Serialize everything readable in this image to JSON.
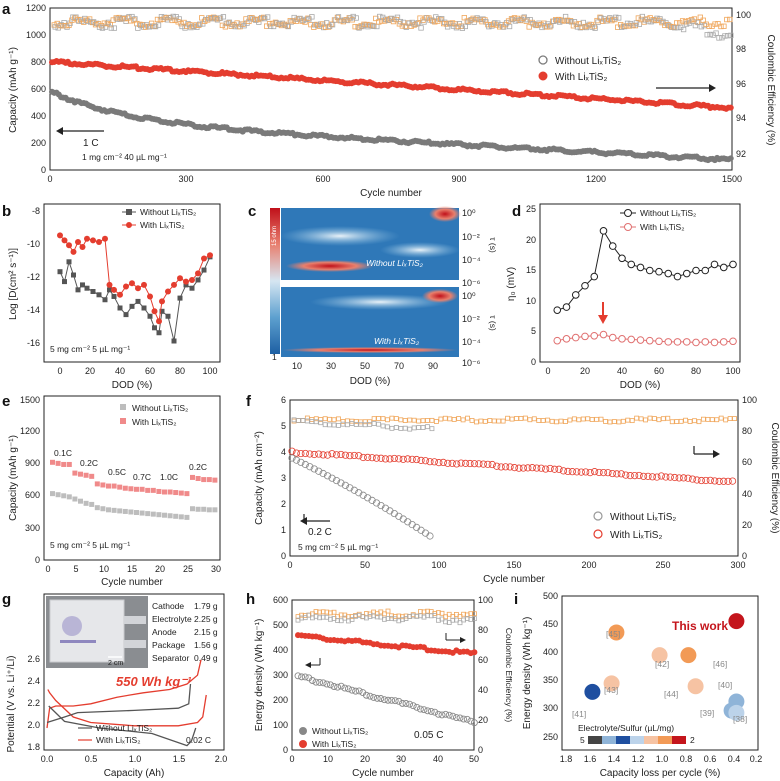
{
  "panel_a": {
    "letter": "a",
    "ylabel": "Capacity (mAh g⁻¹)",
    "y2label": "Coulombic Efficiency (%)",
    "xlabel": "Cycle number",
    "rate": "1 C",
    "loading": "1 mg cm⁻²  40 µL mg⁻¹",
    "x_ticks": [
      "0",
      "300",
      "600",
      "900",
      "1200",
      "1500"
    ],
    "y_ticks": [
      "0",
      "200",
      "400",
      "600",
      "800",
      "1000",
      "1200"
    ],
    "y2_ticks": [
      "92",
      "94",
      "96",
      "98",
      "100"
    ],
    "legend_without": "Without LiₓTiS₂",
    "legend_with": "With LiₓTiS₂"
  },
  "panel_b": {
    "letter": "b",
    "ylabel": "Log [D(cm² s⁻¹)]",
    "xlabel": "DOD (%)",
    "note": "5 mg cm⁻²  5 µL mg⁻¹",
    "x_ticks": [
      "0",
      "20",
      "40",
      "60",
      "80",
      "100"
    ],
    "y_ticks": [
      "-16",
      "-14",
      "-12",
      "-10",
      "-8"
    ],
    "legend_without": "Without LiₓTiS₂",
    "legend_with": "With LiₓTiS₂"
  },
  "panel_c": {
    "letter": "c",
    "xlabel": "DOD (%)",
    "x_ticks": [
      "10",
      "30",
      "50",
      "70",
      "90"
    ],
    "y2label": "τ (s)",
    "y2_ticks_top": [
      "10⁰",
      "10⁻²",
      "10⁻⁴",
      "10⁻⁶"
    ],
    "y2_ticks_bottom": [
      "10⁰",
      "10⁻²",
      "10⁻⁴",
      "10⁻⁶"
    ],
    "colorbar_top": "15 ohm",
    "colorbar_bottom": "1",
    "label_top": "Without LiₓTiS₂",
    "label_bottom": "With LiₓTiS₂"
  },
  "panel_d": {
    "letter": "d",
    "ylabel": "η₀ (mV)",
    "xlabel": "DOD (%)",
    "x_ticks": [
      "0",
      "20",
      "40",
      "60",
      "80",
      "100"
    ],
    "y_ticks": [
      "0",
      "5",
      "10",
      "15",
      "20",
      "25"
    ],
    "legend_without": "Without LiₓTiS₂",
    "legend_with": "With LiₓTiS₂"
  },
  "panel_e": {
    "letter": "e",
    "ylabel": "Capacity (mAh g⁻¹)",
    "xlabel": "Cycle number",
    "note": "5 mg cm⁻²  5 µL mg⁻¹",
    "x_ticks": [
      "0",
      "5",
      "10",
      "15",
      "20",
      "25",
      "30"
    ],
    "y_ticks": [
      "0",
      "300",
      "600",
      "900",
      "1200",
      "1500"
    ],
    "rate_labels": [
      "0.1C",
      "0.2C",
      "0.5C",
      "0.7C",
      "1.0C",
      "0.2C"
    ],
    "legend_without": "Without LiₓTiS₂",
    "legend_with": "With LiₓTiS₂"
  },
  "panel_f": {
    "letter": "f",
    "ylabel": "Capacity (mAh cm⁻²)",
    "y2label": "Coulombic Efficiency (%)",
    "xlabel": "Cycle number",
    "rate": "0.2 C",
    "note": "5 mg cm⁻²  5 µL mg⁻¹",
    "x_ticks": [
      "0",
      "50",
      "100",
      "150",
      "200",
      "250",
      "300"
    ],
    "y_ticks": [
      "0",
      "1",
      "2",
      "3",
      "4",
      "5",
      "6"
    ],
    "y2_ticks": [
      "0",
      "20",
      "40",
      "60",
      "80",
      "100"
    ],
    "legend_without": "Without LiₓTiS₂",
    "legend_with": "With LiₓTiS₂"
  },
  "panel_g": {
    "letter": "g",
    "ylabel": "Potential (V vs. Li⁺/Li)",
    "xlabel": "Capacity (Ah)",
    "x_ticks": [
      "0.0",
      "0.5",
      "1.0",
      "1.5",
      "2.0"
    ],
    "y_ticks": [
      "1.8",
      "2.0",
      "2.2",
      "2.4",
      "2.6"
    ],
    "energy": "550  Wh kg⁻¹",
    "rate": "0.02 C",
    "scale": "2 cm",
    "components": [
      {
        "name": "Cathode",
        "value": "1.79 g"
      },
      {
        "name": "Electrolyte",
        "value": "2.25 g"
      },
      {
        "name": "Anode",
        "value": "2.15 g"
      },
      {
        "name": "Package",
        "value": "1.56 g"
      },
      {
        "name": "Separator",
        "value": "0.49 g"
      }
    ],
    "legend_without": "Without LiₓTiS₂",
    "legend_with": "With LiₓTiS₂"
  },
  "panel_h": {
    "letter": "h",
    "ylabel": "Energy density (Wh kg⁻¹)",
    "y2label": "Coulombic Efficiency (%)",
    "xlabel": "Cycle number",
    "rate": "0.05 C",
    "x_ticks": [
      "0",
      "10",
      "20",
      "30",
      "40",
      "50"
    ],
    "y_ticks": [
      "0",
      "100",
      "200",
      "300",
      "400",
      "500",
      "600"
    ],
    "y2_ticks": [
      "0",
      "20",
      "40",
      "60",
      "80",
      "100"
    ],
    "legend_without": "Without LiₓTiS₂",
    "legend_with": "With LiₓTiS₂"
  },
  "panel_i": {
    "letter": "i",
    "ylabel": "Energy density (Wh kg⁻¹)",
    "xlabel": "Capacity loss per cycle (%)",
    "x_ticks": [
      "1.8",
      "1.6",
      "1.4",
      "1.2",
      "1.0",
      "0.8",
      "0.6",
      "0.4",
      "0.2"
    ],
    "y_ticks": [
      "250",
      "300",
      "350",
      "400",
      "450",
      "500"
    ],
    "this_work": "This work",
    "colorbar_title": "Electrolyte/Sulfur (µL/mg)",
    "colorbar_left": "5",
    "colorbar_right": "2",
    "refs": [
      "[45]",
      "[42]",
      "[46]",
      "[43]",
      "[44]",
      "[40]",
      "[41]",
      "[39]",
      "[38]"
    ]
  },
  "colors": {
    "gray": "#7a7a7a",
    "red": "#e43d2f",
    "orange": "#f0a65a",
    "dark_red": "#c4151c"
  }
}
